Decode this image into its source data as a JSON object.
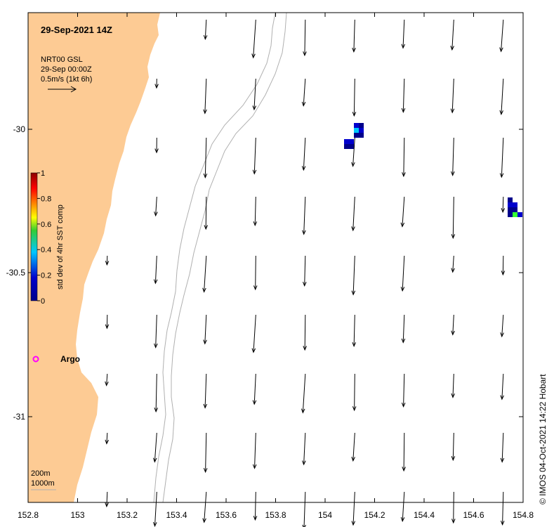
{
  "title": "29-Sep-2021 14Z",
  "legend": {
    "line1": "NRT00 GSL",
    "line2": "29-Sep 00:00Z",
    "line3": "0.5m/s (1kt 6h)"
  },
  "colorbar": {
    "label": "std dev of 4hr SST comp",
    "ticks": [
      "1",
      "0.8",
      "0.6",
      "0.4",
      "0.2",
      "0"
    ],
    "colors": [
      "#8b0000",
      "#ff0000",
      "#ffff00",
      "#33cc33",
      "#00c8ff",
      "#0000cd",
      "#00008b"
    ]
  },
  "argo": {
    "label": "Argo",
    "color": "#ff00ff"
  },
  "depth_labels": [
    "200m",
    "1000m"
  ],
  "x_axis": {
    "ticks": [
      "152.8",
      "153",
      "153.2",
      "153.4",
      "153.6",
      "153.8",
      "154",
      "154.2",
      "154.4",
      "154.6",
      "154.8"
    ]
  },
  "y_axis": {
    "ticks": [
      "-30",
      "-30.5",
      "-31"
    ]
  },
  "credit": "© IMOS 04-Oct-2021 14:22 Hobart",
  "colors": {
    "land": "#fdcb94",
    "isobath": "#b0b0b0"
  }
}
